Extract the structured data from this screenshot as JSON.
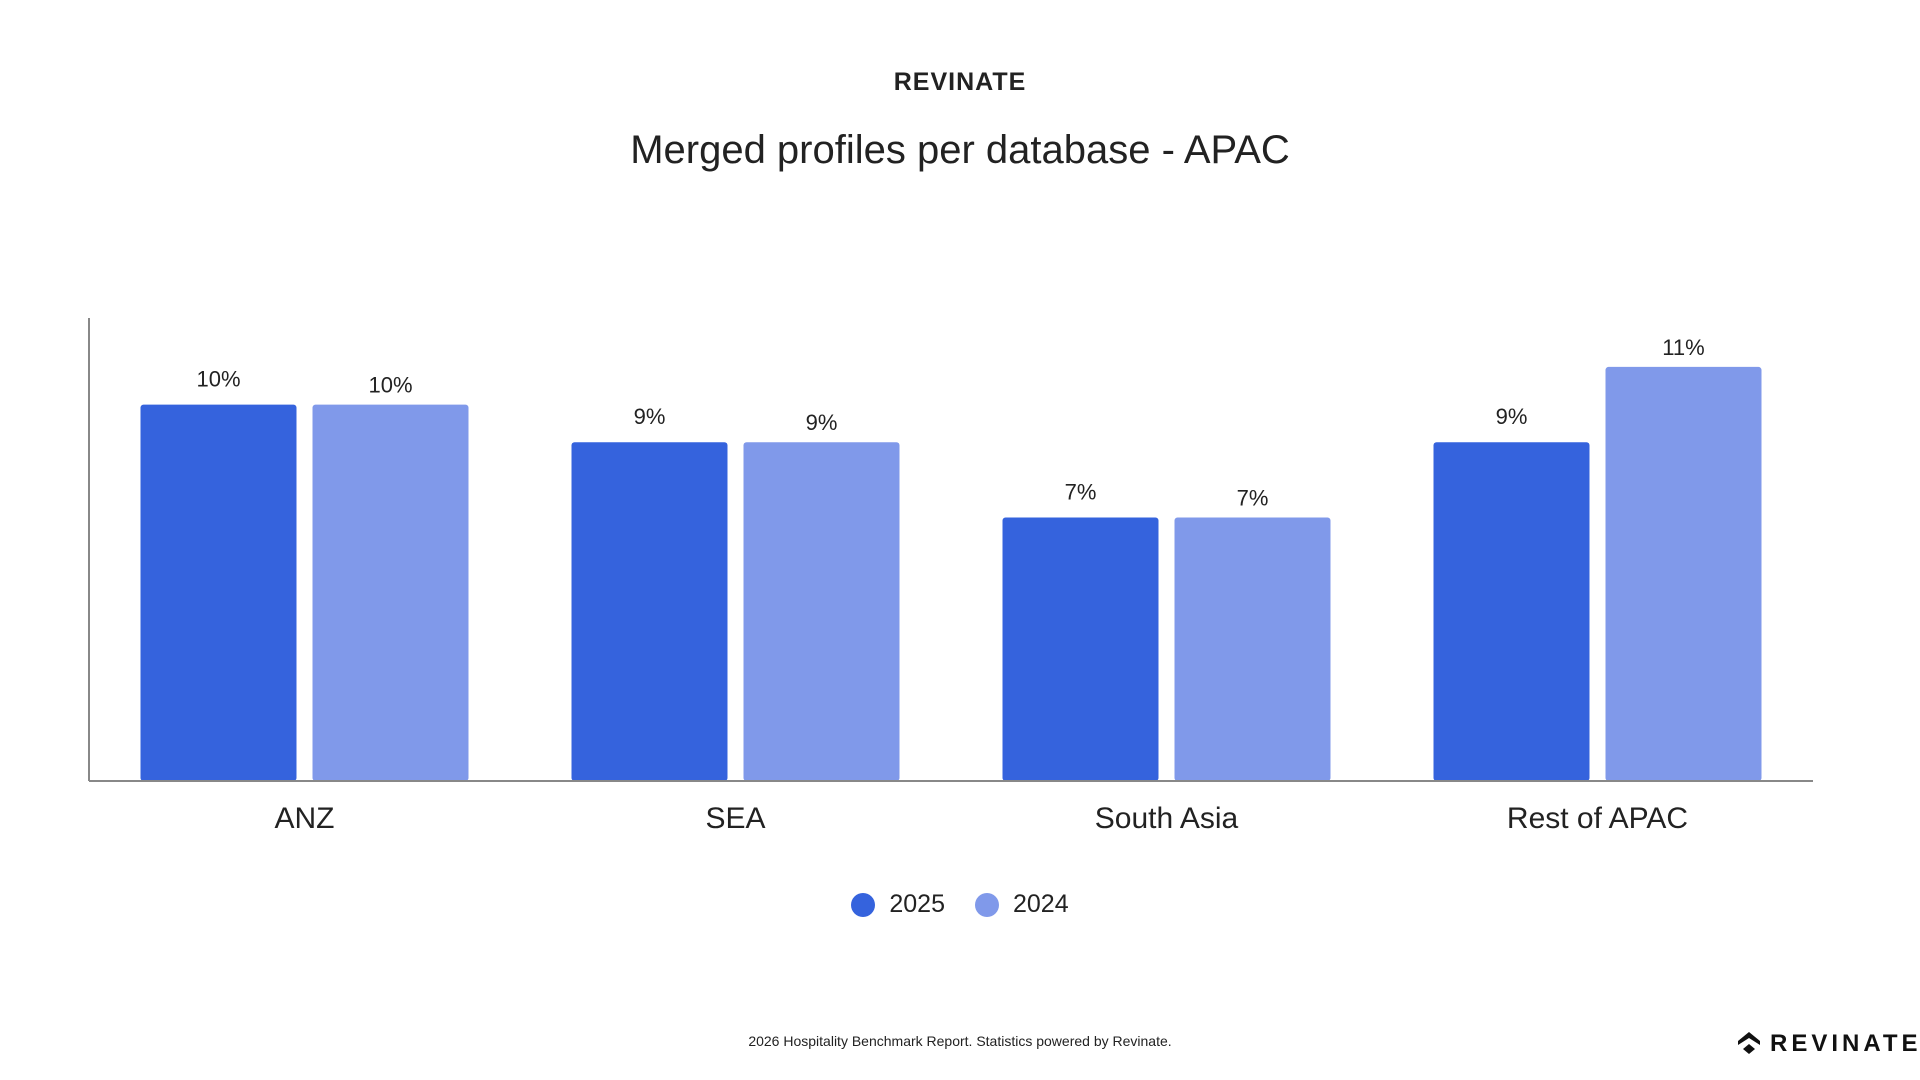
{
  "header": {
    "brand": "REVINATE"
  },
  "chart_data": {
    "type": "bar",
    "title": "Merged profiles per database - APAC",
    "categories": [
      "ANZ",
      "SEA",
      "South Asia",
      "Rest of APAC"
    ],
    "series": [
      {
        "name": "2025",
        "color": "#3563DD",
        "values": [
          10,
          9,
          7,
          9
        ],
        "labels": [
          "10%",
          "9%",
          "7%",
          "9%"
        ]
      },
      {
        "name": "2024",
        "color": "#8099EA",
        "values": [
          10,
          9,
          7,
          11
        ],
        "labels": [
          "10%",
          "9%",
          "7%",
          "11%"
        ]
      }
    ],
    "xlabel": "",
    "ylabel": "",
    "ylim": [
      0,
      12.3
    ],
    "grid": false,
    "legend": "bottom"
  },
  "footer": {
    "text": "2026 Hospitality Benchmark Report. Statistics powered by Revinate.",
    "logo_text": "REVINATE"
  }
}
